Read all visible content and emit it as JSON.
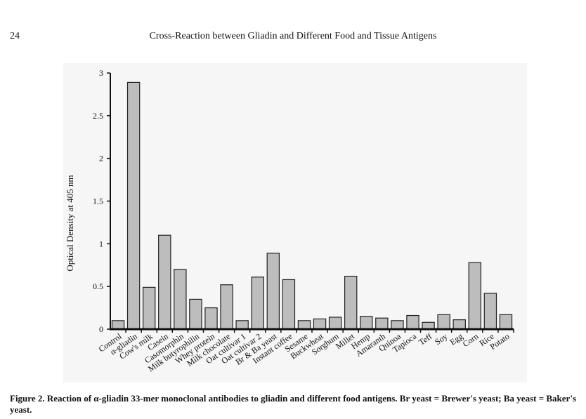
{
  "header": {
    "page_number": "24",
    "running_title": "Cross-Reaction between Gliadin and Different Food and Tissue Antigens"
  },
  "chart_data": {
    "type": "bar",
    "title": "",
    "xlabel": "",
    "ylabel": "Optical Density at 405 nm",
    "ylim": [
      0,
      3
    ],
    "yticks": [
      0,
      0.5,
      1,
      1.5,
      2,
      2.5,
      3
    ],
    "ytick_labels": [
      "0",
      "0.5",
      "1",
      "1.5",
      "2",
      "2.5",
      "3"
    ],
    "grid": false,
    "bar_color": "#bdbdbd",
    "categories": [
      "Control",
      "α-gliadin",
      "Cow's milk",
      "Casein",
      "Casomorphin",
      "Milk butyrophilin",
      "Whey protein",
      "Milk chocolate",
      "Oat cultivar 1",
      "Oat cultivar 2",
      "Br & Ba yeast",
      "Instant coffee",
      "Sesame",
      "Buckwheat",
      "Sorghum",
      "Millet",
      "Hemp",
      "Amaranth",
      "Quinoa",
      "Tapioca",
      "Teff",
      "Soy",
      "Egg",
      "Corn",
      "Rice",
      "Potato"
    ],
    "values": [
      0.1,
      2.89,
      0.49,
      1.1,
      0.7,
      0.35,
      0.25,
      0.52,
      0.1,
      0.61,
      0.89,
      0.58,
      0.1,
      0.12,
      0.14,
      0.62,
      0.15,
      0.13,
      0.1,
      0.16,
      0.08,
      0.17,
      0.11,
      0.78,
      0.42,
      0.17
    ]
  },
  "caption": {
    "text": "Figure 2. Reaction of α-gliadin 33-mer monoclonal antibodies to gliadin and different food antigens. Br yeast = Brewer's yeast; Ba yeast = Baker's yeast."
  }
}
